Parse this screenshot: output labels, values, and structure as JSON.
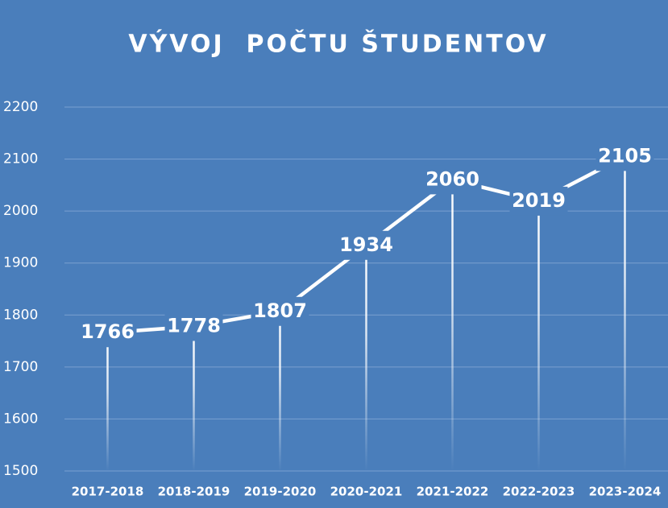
{
  "chart_data": {
    "type": "line",
    "title": "VÝVOJ  POČTU ŠTUDENTOV",
    "categories": [
      "2017-2018",
      "2018-2019",
      "2019-2020",
      "2020-2021",
      "2021-2022",
      "2022-2023",
      "2023-2024"
    ],
    "values": [
      1766,
      1778,
      1807,
      1934,
      2060,
      2019,
      2105
    ],
    "color": "#ffffff",
    "ylim": [
      1500,
      2200
    ],
    "yticks": [
      1500,
      1600,
      1700,
      1800,
      1900,
      2000,
      2100,
      2200
    ],
    "grid": true,
    "drop_lines": true
  }
}
